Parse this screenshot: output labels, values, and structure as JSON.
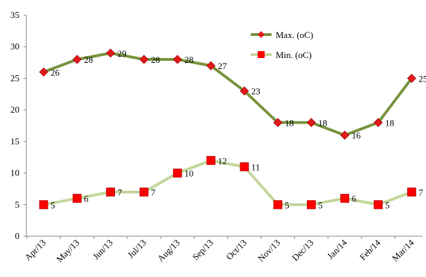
{
  "chart_data": {
    "type": "line",
    "categories": [
      "Apr/13",
      "May/13",
      "Jun/13",
      "Jul/13",
      "Aug/13",
      "Sep/13",
      "Oct/13",
      "Nov/13",
      "Dec/13",
      "Jan/14",
      "Feb/14",
      "Mar/14"
    ],
    "series": [
      {
        "name": "Max. (oC)",
        "values": [
          26,
          28,
          29,
          28,
          28,
          27,
          23,
          18,
          18,
          16,
          18,
          25
        ],
        "line_color": "#77933c",
        "marker_color": "#e31a1c",
        "marker": "diamond"
      },
      {
        "name": "Min. (oC)",
        "values": [
          5,
          6,
          7,
          7,
          10,
          12,
          11,
          5,
          5,
          6,
          5,
          7
        ],
        "line_color": "#c3d69b",
        "marker_color": "#ff0000",
        "marker": "square"
      }
    ],
    "ylim": [
      0,
      35
    ],
    "yticks": [
      0,
      5,
      10,
      15,
      20,
      25,
      30,
      35
    ],
    "grid": false,
    "legend_position": "top-right",
    "title": "",
    "xlabel": "",
    "ylabel": ""
  }
}
